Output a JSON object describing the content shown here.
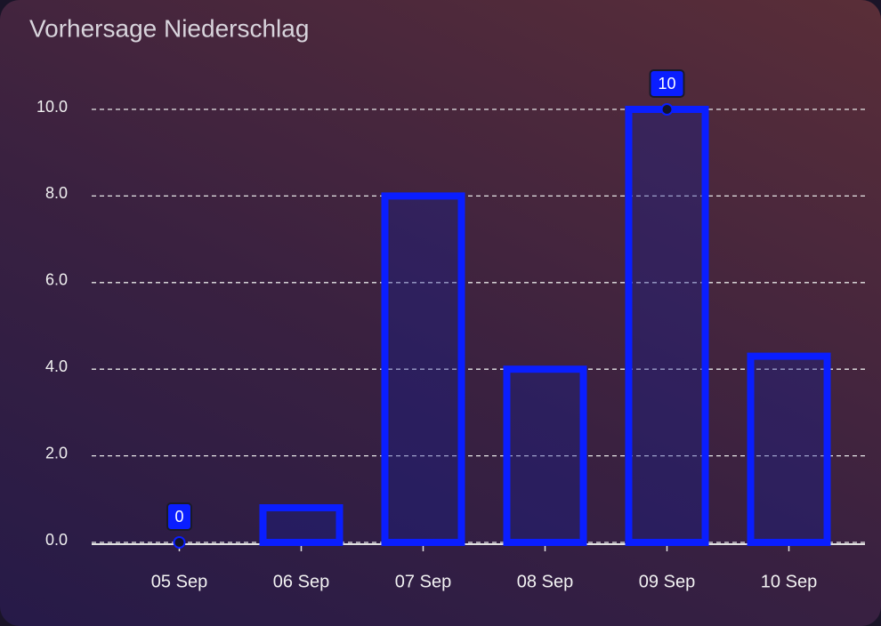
{
  "chart_data": {
    "type": "bar",
    "title": "Vorhersage Niederschlag",
    "categories": [
      "05 Sep",
      "06 Sep",
      "07 Sep",
      "08 Sep",
      "09 Sep",
      "10 Sep"
    ],
    "values": [
      0,
      0.8,
      8.0,
      4.0,
      10,
      4.3
    ],
    "value_labels": [
      "0",
      null,
      null,
      null,
      "10",
      null
    ],
    "color": "#0a1eff",
    "ylim": [
      0,
      10
    ],
    "yticks": [
      {
        "value": 0,
        "label": "0.0"
      },
      {
        "value": 2,
        "label": "2.0"
      },
      {
        "value": 4,
        "label": "4.0"
      },
      {
        "value": 6,
        "label": "6.0"
      },
      {
        "value": 8,
        "label": "8.0"
      },
      {
        "value": 10,
        "label": "10.0"
      }
    ],
    "grid": true
  }
}
